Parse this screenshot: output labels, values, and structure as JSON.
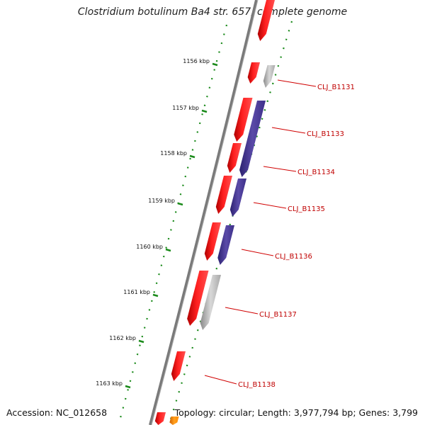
{
  "title": "Clostridium botulinum Ba4 str. 657, complete genome",
  "footer": {
    "accession": "Accession: NC_012658",
    "topology": "Topology: circular; Length: 3,977,794 bp; Genes: 3,799"
  },
  "ruler": [
    "1156 kbp",
    "1157 kbp",
    "1158 kbp",
    "1159 kbp",
    "1160 kbp",
    "1161 kbp",
    "1162 kbp",
    "1163 kbp"
  ],
  "genes": [
    "CLJ_B1131",
    "CLJ_B1133",
    "CLJ_B1134",
    "CLJ_B1135",
    "CLJ_B1136",
    "CLJ_B1137",
    "CLJ_B1138"
  ],
  "colors": {
    "backbone": "#808080",
    "cds_forward": "#ff0000",
    "cog_a": "#4b3d8f",
    "cog_b": "#b8b8b8",
    "gc_skew": "#1a8a1a",
    "label": "#c00000",
    "orange": "#ff8c00"
  }
}
